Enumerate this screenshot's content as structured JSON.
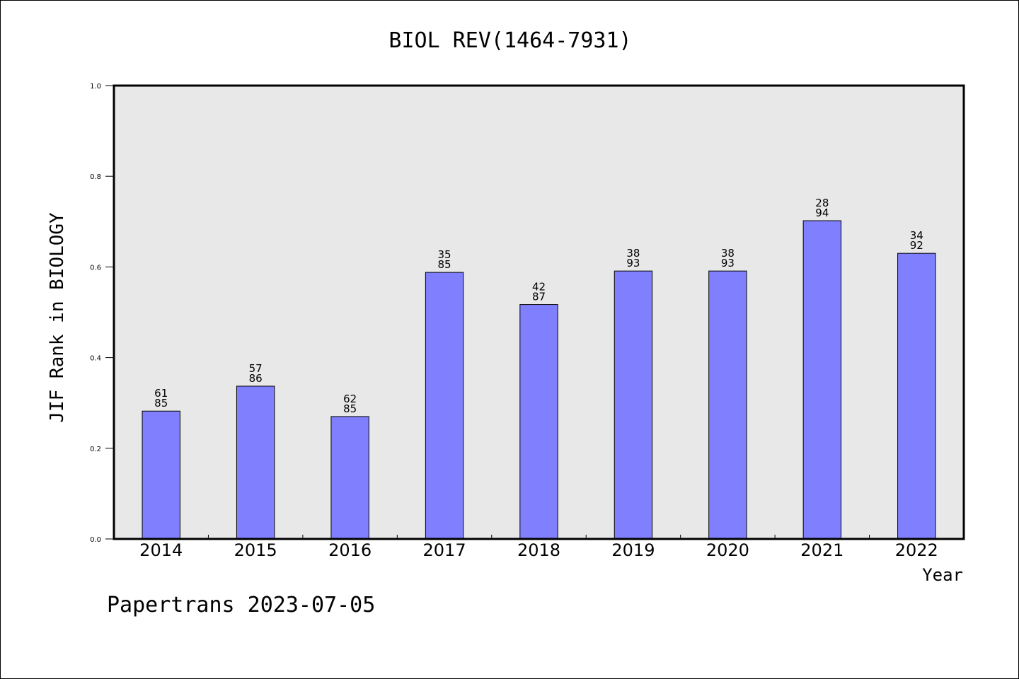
{
  "chart_data": {
    "type": "bar",
    "title": "BIOL REV(1464-7931)",
    "xlabel": "Year",
    "ylabel": "JIF Rank in BIOLOGY",
    "ylim": [
      0.0,
      1.0
    ],
    "yticks": [
      "0.0",
      "0.2",
      "0.4",
      "0.6",
      "0.8",
      "1.0"
    ],
    "categories": [
      "2014",
      "2015",
      "2016",
      "2017",
      "2018",
      "2019",
      "2020",
      "2021",
      "2022"
    ],
    "values": [
      0.282,
      0.337,
      0.27,
      0.588,
      0.517,
      0.591,
      0.591,
      0.702,
      0.63
    ],
    "bar_labels": [
      [
        "61",
        "85"
      ],
      [
        "57",
        "86"
      ],
      [
        "62",
        "85"
      ],
      [
        "35",
        "85"
      ],
      [
        "42",
        "87"
      ],
      [
        "38",
        "93"
      ],
      [
        "38",
        "93"
      ],
      [
        "28",
        "94"
      ],
      [
        "34",
        "92"
      ]
    ],
    "colors": {
      "bar": "#8080ff",
      "plot_bg": "#e8e8e8"
    },
    "grid": false,
    "footer": "Papertrans 2023-07-05"
  }
}
